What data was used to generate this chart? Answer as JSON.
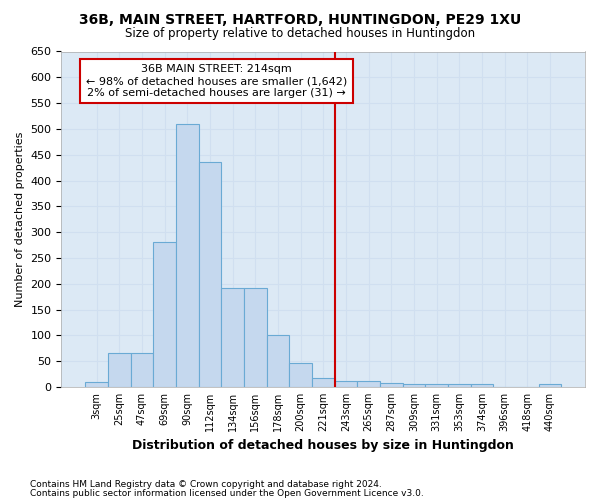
{
  "title": "36B, MAIN STREET, HARTFORD, HUNTINGDON, PE29 1XU",
  "subtitle": "Size of property relative to detached houses in Huntingdon",
  "xlabel": "Distribution of detached houses by size in Huntingdon",
  "ylabel": "Number of detached properties",
  "footnote1": "Contains HM Land Registry data © Crown copyright and database right 2024.",
  "footnote2": "Contains public sector information licensed under the Open Government Licence v3.0.",
  "bar_labels": [
    "3sqm",
    "25sqm",
    "47sqm",
    "69sqm",
    "90sqm",
    "112sqm",
    "134sqm",
    "156sqm",
    "178sqm",
    "200sqm",
    "221sqm",
    "243sqm",
    "265sqm",
    "287sqm",
    "309sqm",
    "331sqm",
    "353sqm",
    "374sqm",
    "396sqm",
    "418sqm",
    "440sqm"
  ],
  "bar_values": [
    10,
    65,
    65,
    280,
    510,
    435,
    192,
    192,
    101,
    47,
    18,
    12,
    12,
    8,
    6,
    6,
    6,
    6,
    0,
    0,
    5
  ],
  "bar_color": "#c5d8ee",
  "bar_edge_color": "#6aaad4",
  "grid_color": "#d0dff0",
  "background_color": "#dce9f5",
  "fig_background_color": "#ffffff",
  "annotation_text": "36B MAIN STREET: 214sqm\n← 98% of detached houses are smaller (1,642)\n2% of semi-detached houses are larger (31) →",
  "annotation_box_color": "#ffffff",
  "annotation_box_edge": "#cc0000",
  "vline_x": 10.5,
  "vline_color": "#cc0000",
  "ylim": [
    0,
    650
  ],
  "yticks": [
    0,
    50,
    100,
    150,
    200,
    250,
    300,
    350,
    400,
    450,
    500,
    550,
    600,
    650
  ]
}
